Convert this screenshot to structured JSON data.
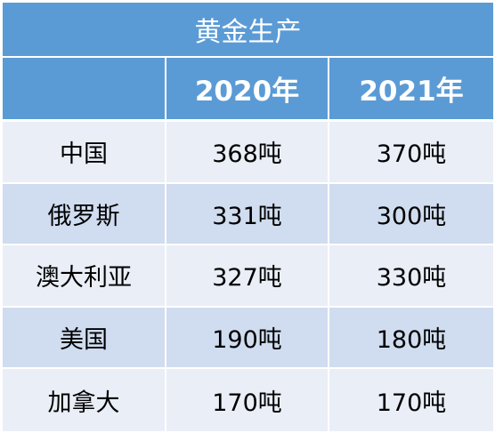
{
  "table": {
    "title": "黄金生产",
    "headers": [
      "",
      "2020年",
      "2021年"
    ],
    "rows": [
      {
        "country": "中国",
        "y2020": "368吨",
        "y2021": "370吨"
      },
      {
        "country": "俄罗斯",
        "y2020": "331吨",
        "y2021": "300吨"
      },
      {
        "country": "澳大利亚",
        "y2020": "327吨",
        "y2021": "330吨"
      },
      {
        "country": "美国",
        "y2020": "190吨",
        "y2021": "180吨"
      },
      {
        "country": "加拿大",
        "y2020": "170吨",
        "y2021": "170吨"
      }
    ]
  },
  "colors": {
    "header_bg": "#5b9bd5",
    "row_light": "#e9eef7",
    "row_dark": "#d0dcef"
  }
}
